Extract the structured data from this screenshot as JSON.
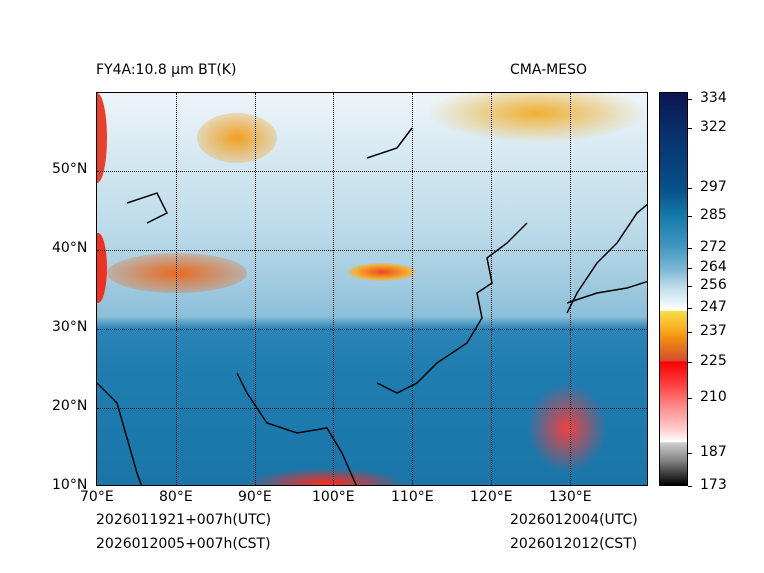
{
  "title_left": "FY4A:10.8 µm BT(K)",
  "title_right": "CMA-MESO",
  "lon_labels": [
    "70°E",
    "80°E",
    "90°E",
    "100°E",
    "110°E",
    "120°E",
    "130°E"
  ],
  "lat_labels": [
    "10°N",
    "20°N",
    "30°N",
    "40°N",
    "50°N"
  ],
  "colorbar": {
    "ticks": [
      "334",
      "322",
      "297",
      "285",
      "272",
      "264",
      "256",
      "247",
      "237",
      "225",
      "210",
      "187",
      "173"
    ]
  },
  "footer": {
    "init_utc": "2026011921+007h(UTC)",
    "init_cst": "2026012005+007h(CST)",
    "valid_utc": "2026012004(UTC)",
    "valid_cst": "2026012012(CST)"
  }
}
